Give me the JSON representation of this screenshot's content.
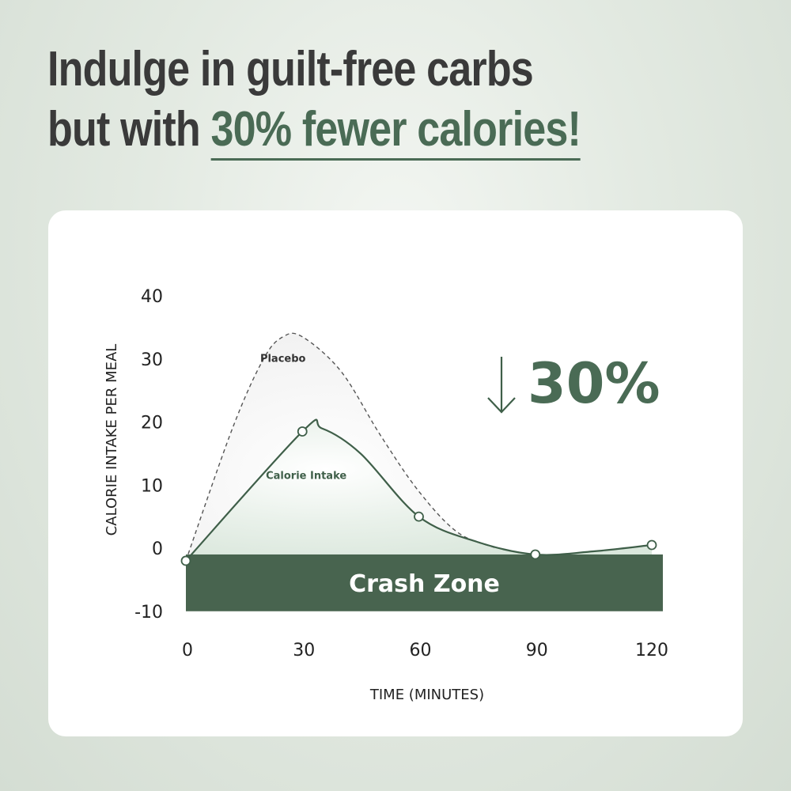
{
  "header": {
    "line1": "Indulge in guilt-free carbs",
    "line2_prefix": "but with ",
    "line2_highlight": "30% fewer calories!"
  },
  "colors": {
    "accent": "#4a6b55",
    "text_dark": "#3a3a3a",
    "crash_zone": "#48644f"
  },
  "chart_data": {
    "type": "line",
    "xlabel": "TIME (MINUTES)",
    "ylabel": "CALORIE INTAKE PER MEAL",
    "xlim": [
      0,
      120
    ],
    "ylim": [
      -10,
      40
    ],
    "x_ticks": [
      "0",
      "30",
      "60",
      "90",
      "120"
    ],
    "y_ticks": [
      "40",
      "30",
      "20",
      "10",
      "0",
      "-10"
    ],
    "series": [
      {
        "name": "Placebo",
        "style": "dashed",
        "x": [
          0,
          12,
          20,
          25,
          30,
          40,
          50,
          60,
          70,
          80
        ],
        "y": [
          -2,
          19,
          30,
          33.5,
          33.5,
          28,
          18,
          9,
          2.5,
          0
        ]
      },
      {
        "name": "Calorie Intake",
        "style": "solid",
        "x": [
          0,
          30,
          35,
          45,
          60,
          75,
          90,
          105,
          120
        ],
        "y": [
          -2,
          18.5,
          19,
          15,
          5,
          1,
          -1,
          -0.5,
          0.5
        ],
        "markers_x": [
          0,
          30,
          60,
          90,
          120
        ],
        "markers_y": [
          -2,
          18.5,
          5,
          -1,
          0.5
        ]
      }
    ],
    "band": {
      "label": "Crash Zone",
      "y_from": -10,
      "y_to": -1
    },
    "annotation": {
      "text": "30%",
      "icon": "down-arrow-icon"
    }
  }
}
